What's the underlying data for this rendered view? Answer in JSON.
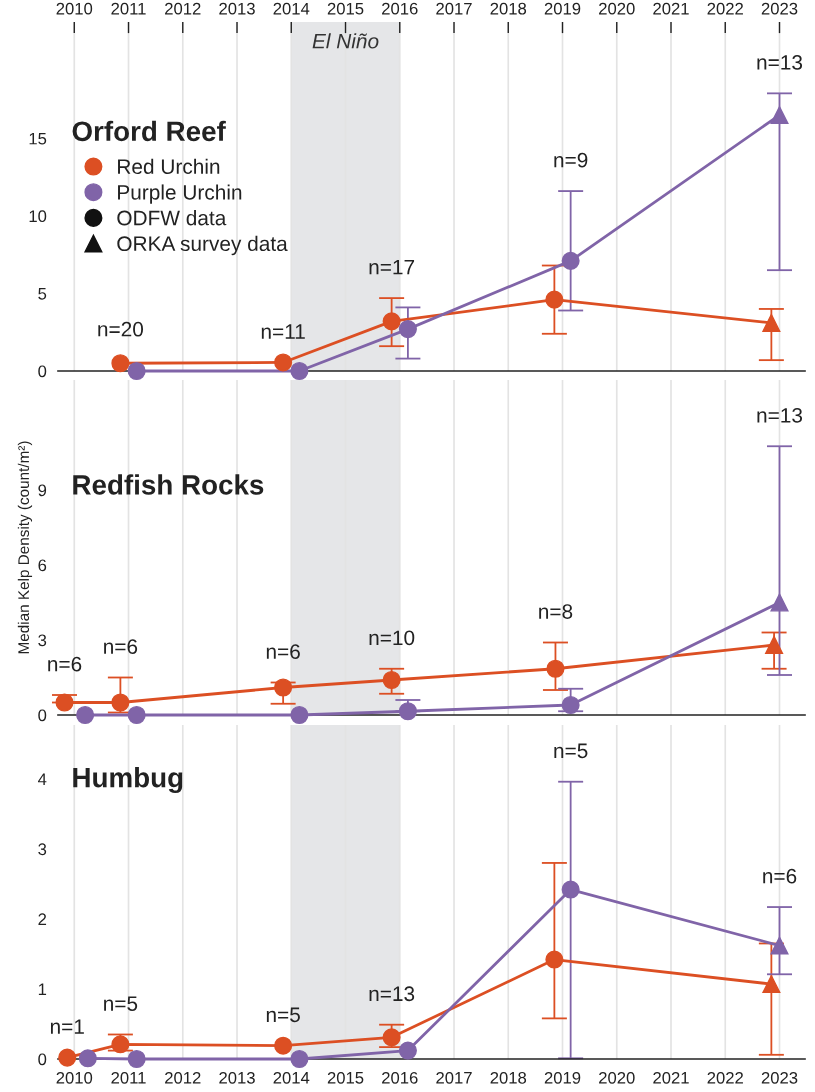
{
  "chart_data": [
    {
      "type": "line",
      "annotations": [
        "Orford Reef",
        "ODFW data",
        "ORKA survey data",
        {
          "text": "n=20",
          "x": 2010.85,
          "y": 0.7
        },
        {
          "text": "n=11",
          "x": 2013.85,
          "y": 0.55
        },
        {
          "text": "n=17",
          "x": 2015.85,
          "y": 4.7
        },
        {
          "text": "n=9",
          "x": 2019.15,
          "y": 11.6
        },
        {
          "text": "n=13",
          "x": 2023,
          "y": 17.9
        }
      ],
      "series": [
        {
          "color": "#dc4f23",
          "marker": "none",
          "x": [
            2010.85,
            2013.85,
            2015.85,
            2018.85,
            2022.85
          ],
          "values": [
            0.5,
            0.55,
            3.2,
            4.6,
            3.1
          ]
        },
        {
          "color": "#8064a8",
          "marker": "none",
          "x": [
            2011.15,
            2014.15,
            2016.15,
            2019.15,
            2023
          ],
          "values": [
            0,
            0,
            2.7,
            7.1,
            16.5
          ]
        },
        {
          "type": "scatter",
          "name": "Red Urchin",
          "color": "#dc4f23",
          "marker": "circle",
          "x": [
            2010.85,
            2013.85,
            2015.85,
            2018.85
          ],
          "values": [
            0.5,
            0.55,
            3.2,
            4.6
          ],
          "errors": [
            null,
            null,
            [
              1.6,
              4.7
            ],
            [
              2.4,
              6.8
            ]
          ]
        },
        {
          "type": "scatter",
          "name": "Purple Urchin",
          "color": "#8064a8",
          "marker": "circle",
          "x": [
            2011.15,
            2014.15,
            2016.15,
            2019.15
          ],
          "values": [
            0,
            0,
            2.7,
            7.1
          ],
          "errors": [
            null,
            null,
            [
              0.8,
              4.1
            ],
            [
              3.9,
              11.6
            ]
          ]
        },
        {
          "type": "scatter",
          "color": "#dc4f23",
          "marker": "triangle",
          "x": [
            2022.85
          ],
          "values": [
            3.1
          ],
          "errors": [
            [
              0.7,
              4.0
            ]
          ]
        },
        {
          "type": "scatter",
          "color": "#8064a8",
          "marker": "triangle",
          "x": [
            2023
          ],
          "values": [
            16.5
          ],
          "errors": [
            [
              6.5,
              17.9
            ]
          ]
        }
      ],
      "legend": "top left",
      "bands": [
        {
          "axis": "x",
          "from": 2014,
          "to": 2016,
          "label": "El Niño",
          "color": "#e5e6e8"
        }
      ],
      "xlim": [
        2009.7,
        2023.47
      ],
      "xticks": [
        2010,
        2011,
        2012,
        2013,
        2014,
        2015,
        2016,
        2017,
        2018,
        2019,
        2020,
        2021,
        2022,
        2023
      ],
      "x2lim": [
        2009.7,
        2023.47
      ],
      "x2ticks": [
        2010,
        2011,
        2012,
        2013,
        2014,
        2015,
        2016,
        2017,
        2018,
        2019,
        2020,
        2021,
        2022,
        2023
      ],
      "ylim": [
        0,
        22.5
      ],
      "yticks": [
        0,
        5,
        10,
        15
      ],
      "grid": "x",
      "tick_labels": "y"
    },
    {
      "type": "line",
      "ylabel": "Median Kelp Density (count/m²)",
      "annotations": [
        "Redfish Rocks",
        {
          "text": "n=6",
          "x": 2009.82,
          "y": 0.8
        },
        {
          "text": "n=6",
          "x": 2010.85,
          "y": 1.5
        },
        {
          "text": "n=6",
          "x": 2013.85,
          "y": 1.3
        },
        {
          "text": "n=10",
          "x": 2015.85,
          "y": 1.85
        },
        {
          "text": "n=8",
          "x": 2018.87,
          "y": 2.9
        },
        {
          "text": "n=13",
          "x": 2023,
          "y": 10.75
        }
      ],
      "series": [
        {
          "color": "#dc4f23",
          "marker": "none",
          "x": [
            2009.82,
            2010.85,
            2013.85,
            2015.85,
            2018.87,
            2022.9
          ],
          "values": [
            0.5,
            0.5,
            1.1,
            1.4,
            1.85,
            2.8
          ]
        },
        {
          "color": "#8064a8",
          "marker": "none",
          "x": [
            2010.2,
            2011.15,
            2014.15,
            2016.15,
            2019.15,
            2023
          ],
          "values": [
            0,
            0,
            0,
            0.15,
            0.4,
            4.5
          ]
        },
        {
          "type": "scatter",
          "color": "#dc4f23",
          "marker": "circle",
          "x": [
            2009.82,
            2010.85,
            2013.85,
            2015.85,
            2018.87
          ],
          "values": [
            0.5,
            0.5,
            1.1,
            1.4,
            1.85
          ],
          "errors": [
            [
              0.5,
              0.8
            ],
            [
              0.1,
              1.5
            ],
            [
              0.45,
              1.3
            ],
            [
              0.85,
              1.85
            ],
            [
              1.0,
              2.9
            ]
          ]
        },
        {
          "type": "scatter",
          "color": "#8064a8",
          "marker": "circle",
          "x": [
            2010.2,
            2011.15,
            2014.15,
            2016.15,
            2019.15
          ],
          "values": [
            0,
            0,
            0,
            0.15,
            0.4
          ],
          "errors": [
            null,
            null,
            null,
            [
              0.15,
              0.6
            ],
            [
              0.15,
              1.05
            ]
          ]
        },
        {
          "type": "scatter",
          "color": "#dc4f23",
          "marker": "triangle",
          "x": [
            2022.9
          ],
          "values": [
            2.8
          ],
          "errors": [
            [
              1.85,
              3.3
            ]
          ]
        },
        {
          "type": "scatter",
          "color": "#8064a8",
          "marker": "triangle",
          "x": [
            2023
          ],
          "values": [
            4.5
          ],
          "errors": [
            [
              1.6,
              10.75
            ]
          ]
        }
      ],
      "bands": [
        {
          "axis": "x",
          "from": 2014,
          "to": 2016,
          "color": "#e5e6e8"
        }
      ],
      "xlim": [
        2009.7,
        2023.47
      ],
      "xticks": [
        2010,
        2011,
        2012,
        2013,
        2014,
        2015,
        2016,
        2017,
        2018,
        2019,
        2020,
        2021,
        2022,
        2023
      ],
      "ylim": [
        0,
        13.4
      ],
      "yticks": [
        0,
        3,
        6,
        9
      ],
      "grid": "x",
      "tick_labels": "y"
    },
    {
      "type": "line",
      "annotations": [
        "Humbug",
        {
          "text": "n=1",
          "x": 2009.87,
          "y": 0.02
        },
        {
          "text": "n=5",
          "x": 2010.85,
          "y": 0.35
        },
        {
          "text": "n=5",
          "x": 2013.85,
          "y": 0.19
        },
        {
          "text": "n=13",
          "x": 2015.85,
          "y": 0.49
        },
        {
          "text": "n=5",
          "x": 2019.15,
          "y": 3.96
        },
        {
          "text": "n=6",
          "x": 2023,
          "y": 2.17
        }
      ],
      "series": [
        {
          "color": "#dc4f23",
          "marker": "none",
          "x": [
            2009.87,
            2010.85,
            2013.85,
            2015.85,
            2018.85,
            2022.85
          ],
          "values": [
            0.02,
            0.21,
            0.19,
            0.31,
            1.42,
            1.07
          ]
        },
        {
          "color": "#8064a8",
          "marker": "none",
          "x": [
            2010.25,
            2011.15,
            2014.15,
            2016.15,
            2019.15,
            2023
          ],
          "values": [
            0.01,
            0,
            0,
            0.12,
            2.42,
            1.62
          ]
        },
        {
          "type": "scatter",
          "color": "#dc4f23",
          "marker": "circle",
          "x": [
            2009.87,
            2010.85,
            2013.85,
            2015.85,
            2018.85
          ],
          "values": [
            0.02,
            0.21,
            0.19,
            0.31,
            1.42
          ],
          "errors": [
            null,
            [
              0.12,
              0.35
            ],
            null,
            [
              0.17,
              0.49
            ],
            [
              0.58,
              2.8
            ]
          ]
        },
        {
          "type": "scatter",
          "color": "#8064a8",
          "marker": "circle",
          "x": [
            2010.25,
            2011.15,
            2014.15,
            2016.15,
            2019.15
          ],
          "values": [
            0.01,
            0,
            0,
            0.12,
            2.42
          ],
          "errors": [
            null,
            null,
            null,
            null,
            [
              0.01,
              3.96
            ]
          ]
        },
        {
          "type": "scatter",
          "color": "#dc4f23",
          "marker": "triangle",
          "x": [
            2022.85
          ],
          "values": [
            1.07
          ],
          "errors": [
            [
              0.06,
              1.65
            ]
          ]
        },
        {
          "type": "scatter",
          "color": "#8064a8",
          "marker": "triangle",
          "x": [
            2023
          ],
          "values": [
            1.62
          ],
          "errors": [
            [
              1.21,
              2.17
            ]
          ]
        }
      ],
      "bands": [
        {
          "axis": "x",
          "from": 2014,
          "to": 2016,
          "color": "#e5e6e8"
        }
      ],
      "xlim": [
        2009.7,
        2023.47
      ],
      "xticks": [
        2010,
        2011,
        2012,
        2013,
        2014,
        2015,
        2016,
        2017,
        2018,
        2019,
        2020,
        2021,
        2022,
        2023
      ],
      "ylim": [
        0,
        4.77
      ],
      "yticks": [
        0,
        1,
        2,
        3,
        4
      ],
      "grid": "x"
    }
  ]
}
